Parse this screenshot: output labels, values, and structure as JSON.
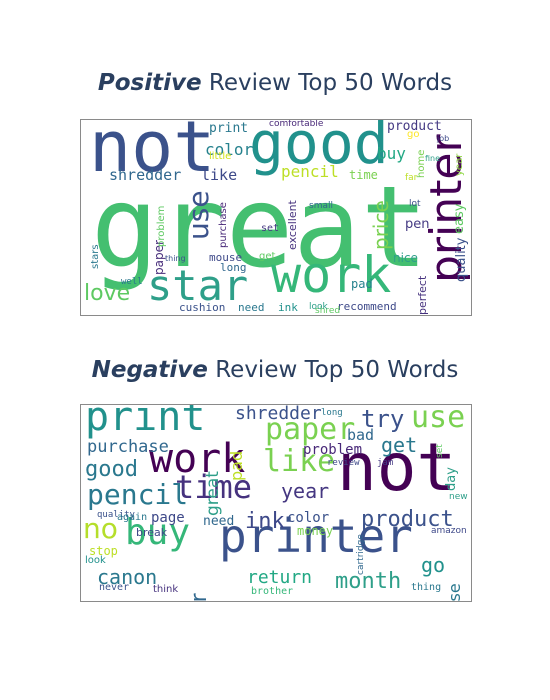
{
  "panels": [
    {
      "title_emphasis": "Positive",
      "title_rest": "Review Top 50 Words",
      "words": [
        {
          "text": "great",
          "color": "#44bf70"
        },
        {
          "text": "not",
          "color": "#3b528b"
        },
        {
          "text": "good",
          "color": "#21918c"
        },
        {
          "text": "work",
          "color": "#35b779"
        },
        {
          "text": "star",
          "color": "#2e9f89"
        },
        {
          "text": "printer",
          "color": "#440154"
        },
        {
          "text": "love",
          "color": "#5ec962"
        },
        {
          "text": "use",
          "color": "#3b528b"
        },
        {
          "text": "price",
          "color": "#7ad151"
        },
        {
          "text": "pencil",
          "color": "#bddf26"
        },
        {
          "text": "shredder",
          "color": "#31688e"
        },
        {
          "text": "like",
          "color": "#3e4989"
        },
        {
          "text": "color",
          "color": "#26828e"
        },
        {
          "text": "buy",
          "color": "#22a884"
        },
        {
          "text": "product",
          "color": "#443983"
        },
        {
          "text": "print",
          "color": "#2a788e"
        },
        {
          "text": "little",
          "color": "#d2e21b"
        },
        {
          "text": "time",
          "color": "#7ad151"
        },
        {
          "text": "quality",
          "color": "#3b528b"
        },
        {
          "text": "easy",
          "color": "#5ec962"
        },
        {
          "text": "year",
          "color": "#8fd744"
        },
        {
          "text": "pen",
          "color": "#443983"
        },
        {
          "text": "nice",
          "color": "#2e9f89"
        },
        {
          "text": "perfect",
          "color": "#46327e"
        },
        {
          "text": "recommend",
          "color": "#3e4989"
        },
        {
          "text": "pad",
          "color": "#26828e"
        },
        {
          "text": "need",
          "color": "#2a788e"
        },
        {
          "text": "ink",
          "color": "#21918c"
        },
        {
          "text": "cushion",
          "color": "#3b528b"
        },
        {
          "text": "mouse",
          "color": "#3e4989"
        },
        {
          "text": "long",
          "color": "#31688e"
        },
        {
          "text": "get",
          "color": "#5ec962"
        },
        {
          "text": "paper",
          "color": "#472d7b"
        },
        {
          "text": "purchase",
          "color": "#482878"
        },
        {
          "text": "set",
          "color": "#453781"
        },
        {
          "text": "excellent",
          "color": "#46327e"
        },
        {
          "text": "small",
          "color": "#31688e"
        },
        {
          "text": "shred",
          "color": "#5ec962"
        },
        {
          "text": "look",
          "color": "#2e9f89"
        },
        {
          "text": "stars",
          "color": "#2a788e"
        },
        {
          "text": "problem",
          "color": "#5ec962"
        },
        {
          "text": "thing",
          "color": "#3b528b"
        },
        {
          "text": "well",
          "color": "#2a788e"
        },
        {
          "text": "comfortable",
          "color": "#482878"
        },
        {
          "text": "job",
          "color": "#3e4989"
        },
        {
          "text": "go",
          "color": "#fde725"
        },
        {
          "text": "home",
          "color": "#7ad151"
        },
        {
          "text": "fine",
          "color": "#2e9f89"
        },
        {
          "text": "far",
          "color": "#bddf26"
        },
        {
          "text": "lot",
          "color": "#3b528b"
        }
      ]
    },
    {
      "title_emphasis": "Negative",
      "title_rest": "Review Top 50 Words",
      "words": [
        {
          "text": "not",
          "color": "#440154"
        },
        {
          "text": "printer",
          "color": "#3b528b"
        },
        {
          "text": "work",
          "color": "#440154"
        },
        {
          "text": "print",
          "color": "#21918c"
        },
        {
          "text": "buy",
          "color": "#35b779"
        },
        {
          "text": "time",
          "color": "#46327e"
        },
        {
          "text": "pencil",
          "color": "#2a788e"
        },
        {
          "text": "no",
          "color": "#b5de2b"
        },
        {
          "text": "like",
          "color": "#7ad151"
        },
        {
          "text": "paper",
          "color": "#7ad151"
        },
        {
          "text": "use",
          "color": "#7ad151"
        },
        {
          "text": "good",
          "color": "#2a788e"
        },
        {
          "text": "star",
          "color": "#31688e"
        },
        {
          "text": "year",
          "color": "#453781"
        },
        {
          "text": "product",
          "color": "#3b528b"
        },
        {
          "text": "try",
          "color": "#3b528b"
        },
        {
          "text": "get",
          "color": "#2a788e"
        },
        {
          "text": "ink",
          "color": "#3e4989"
        },
        {
          "text": "return",
          "color": "#22a884"
        },
        {
          "text": "month",
          "color": "#2e9f89"
        },
        {
          "text": "canon",
          "color": "#2a788e"
        },
        {
          "text": "shredder",
          "color": "#3b528b"
        },
        {
          "text": "purchase",
          "color": "#31688e"
        },
        {
          "text": "great",
          "color": "#2e9f89"
        },
        {
          "text": "pad",
          "color": "#bddf26"
        },
        {
          "text": "bad",
          "color": "#31688e"
        },
        {
          "text": "problem",
          "color": "#482878"
        },
        {
          "text": "go",
          "color": "#21918c"
        },
        {
          "text": "mouse",
          "color": "#2a788e"
        },
        {
          "text": "color",
          "color": "#3b528b"
        },
        {
          "text": "money",
          "color": "#7ad151"
        },
        {
          "text": "need",
          "color": "#31688e"
        },
        {
          "text": "page",
          "color": "#3e4989"
        },
        {
          "text": "stop",
          "color": "#bddf26"
        },
        {
          "text": "break",
          "color": "#3e4989"
        },
        {
          "text": "day",
          "color": "#2e9f89"
        },
        {
          "text": "set",
          "color": "#5ec962"
        },
        {
          "text": "long",
          "color": "#2a788e"
        },
        {
          "text": "review",
          "color": "#3e4989"
        },
        {
          "text": "jam",
          "color": "#443983"
        },
        {
          "text": "cartridge",
          "color": "#31688e"
        },
        {
          "text": "quality",
          "color": "#3b528b"
        },
        {
          "text": "again",
          "color": "#2a788e"
        },
        {
          "text": "look",
          "color": "#21918c"
        },
        {
          "text": "never",
          "color": "#3b528b"
        },
        {
          "text": "think",
          "color": "#46327e"
        },
        {
          "text": "brother",
          "color": "#35b779"
        },
        {
          "text": "thing",
          "color": "#2a788e"
        },
        {
          "text": "amazon",
          "color": "#3e4989"
        },
        {
          "text": "new",
          "color": "#2e9f89"
        }
      ]
    }
  ]
}
